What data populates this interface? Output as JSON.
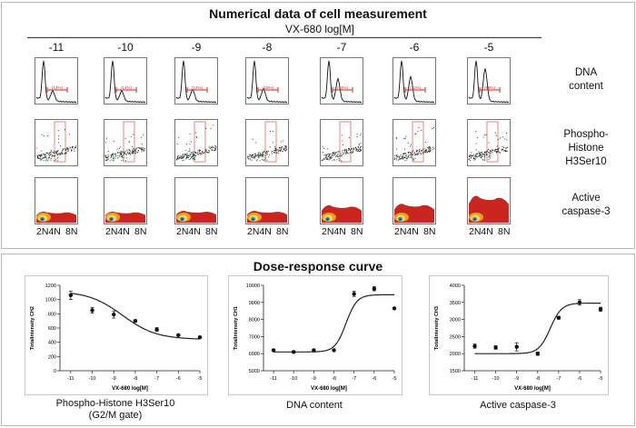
{
  "top": {
    "title": "Numerical data of cell measurement",
    "drug_label": "VX-680  log[M]",
    "concentrations": [
      "-11",
      "-10",
      "-9",
      "-8",
      "-7",
      "-6",
      "-5"
    ],
    "rows": [
      {
        "label_l1": "DNA",
        "label_l2": "content"
      },
      {
        "label_l1": "Phospho-",
        "label_l2": "Histone",
        "label_l3": "H3Ser10"
      },
      {
        "label_l1": "Active",
        "label_l2": "caspase-3"
      }
    ],
    "x_axis_ticks": [
      "2N4N",
      "8N"
    ],
    "gate_counts": [
      "(14%)",
      "(14%)",
      "(14%)",
      "(15%)",
      "(34%)",
      "(31%)",
      "(68%)"
    ]
  },
  "bottom": {
    "title": "Dose-response curve",
    "colors": {
      "curve": "#222222",
      "point": "#111111"
    }
  },
  "chart_data": [
    {
      "type": "scatter",
      "title": "",
      "xlabel": "VX-680 log[M]",
      "ylabel": "TotalIntensity CH2",
      "caption": "Phospho-Histone H3Ser10",
      "caption2": "(G2/M gate)",
      "x": [
        -11,
        -10,
        -9,
        -8,
        -7,
        -6,
        -5
      ],
      "values": [
        1060,
        850,
        790,
        700,
        580,
        500,
        470
      ],
      "errors": [
        60,
        40,
        50,
        15,
        25,
        10,
        10
      ],
      "xlim": [
        -11.5,
        -5
      ],
      "ylim": [
        0,
        1200
      ],
      "xticks": [
        -11,
        -10,
        -9,
        -8,
        -7,
        -6,
        -5
      ],
      "yticks": [
        0,
        200,
        400,
        600,
        800,
        1000,
        1200
      ],
      "fit": "decreasing"
    },
    {
      "type": "scatter",
      "title": "",
      "xlabel": "VX-680 log[M]",
      "ylabel": "TotalIntensity CH1",
      "caption": "DNA content",
      "caption2": "",
      "x": [
        -11,
        -10,
        -9,
        -8,
        -7,
        -6,
        -5
      ],
      "values": [
        6200,
        6100,
        6200,
        6200,
        9500,
        9800,
        8650
      ],
      "errors": [
        40,
        40,
        40,
        40,
        150,
        120,
        40
      ],
      "xlim": [
        -11.5,
        -5
      ],
      "ylim": [
        5000,
        10000
      ],
      "xticks": [
        -11,
        -10,
        -9,
        -8,
        -7,
        -6,
        -5
      ],
      "yticks": [
        5000,
        6000,
        7000,
        8000,
        9000,
        10000
      ],
      "fit": "sigmoid_up"
    },
    {
      "type": "scatter",
      "title": "",
      "xlabel": "VX-680 log[M]",
      "ylabel": "TotalIntensity CH3",
      "caption": "Active caspase-3",
      "caption2": "",
      "x": [
        -11,
        -10,
        -9,
        -8,
        -7,
        -6,
        -5
      ],
      "values": [
        2220,
        2180,
        2200,
        2000,
        3050,
        3500,
        3300
      ],
      "errors": [
        60,
        50,
        120,
        50,
        40,
        80,
        60
      ],
      "xlim": [
        -11.5,
        -5
      ],
      "ylim": [
        1500,
        4000
      ],
      "xticks": [
        -11,
        -10,
        -9,
        -8,
        -7,
        -6,
        -5
      ],
      "yticks": [
        1500,
        2000,
        2500,
        3000,
        3500,
        4000
      ],
      "fit": "sigmoid_up"
    }
  ]
}
